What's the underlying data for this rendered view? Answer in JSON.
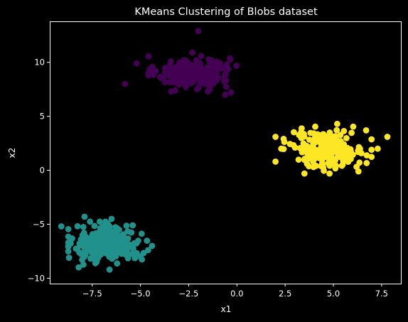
{
  "chart_data": {
    "type": "scatter",
    "title": "KMeans Clustering of Blobs dataset",
    "xlabel": "x1",
    "ylabel": "x2",
    "xlim": [
      -9.7,
      8.5
    ],
    "ylim": [
      -10.5,
      13.8
    ],
    "xticks": [
      -7.5,
      -5.0,
      -2.5,
      0.0,
      2.5,
      5.0,
      7.5
    ],
    "xtick_labels": [
      "−7.5",
      "−5.0",
      "−2.5",
      "0.0",
      "2.5",
      "5.0",
      "7.5"
    ],
    "yticks": [
      -10,
      -5,
      0,
      5,
      10
    ],
    "ytick_labels": [
      "−10",
      "−5",
      "0",
      "5",
      "10"
    ],
    "grid": false,
    "background": "#000000",
    "series": [
      {
        "color": "#440154",
        "center": [
          -2.3,
          9.1
        ],
        "spread": [
          0.95,
          0.75
        ],
        "count": 200,
        "points": [
          [
            -2.0,
            12.9
          ],
          [
            -5.2,
            9.9
          ],
          [
            -5.8,
            8.0
          ],
          [
            -0.3,
            7.2
          ],
          [
            -0.6,
            7.0
          ],
          [
            -3.2,
            7.4
          ],
          [
            -1.4,
            7.5
          ],
          [
            -4.2,
            9.2
          ],
          [
            -3.8,
            8.6
          ]
        ]
      },
      {
        "color": "#21918c",
        "center": [
          -6.7,
          -6.8
        ],
        "spread": [
          0.85,
          0.85
        ],
        "count": 250,
        "points": [
          [
            -9.1,
            -5.2
          ],
          [
            -7.9,
            -4.3
          ],
          [
            -6.5,
            -4.5
          ],
          [
            -4.4,
            -7.0
          ],
          [
            -4.6,
            -7.4
          ],
          [
            -8.2,
            -9.0
          ],
          [
            -6.6,
            -9.2
          ],
          [
            -5.4,
            -5.1
          ],
          [
            -8.7,
            -8.1
          ],
          [
            -5.0,
            -8.0
          ]
        ]
      },
      {
        "color": "#fde725",
        "center": [
          4.7,
          2.0
        ],
        "spread": [
          0.95,
          0.85
        ],
        "count": 200,
        "points": [
          [
            2.0,
            3.1
          ],
          [
            2.0,
            0.8
          ],
          [
            7.8,
            3.1
          ],
          [
            7.3,
            2.0
          ],
          [
            6.3,
            -0.1
          ],
          [
            4.8,
            -0.3
          ],
          [
            3.5,
            -0.3
          ],
          [
            5.2,
            4.3
          ],
          [
            6.7,
            3.7
          ],
          [
            2.3,
            2.0
          ]
        ]
      }
    ]
  }
}
